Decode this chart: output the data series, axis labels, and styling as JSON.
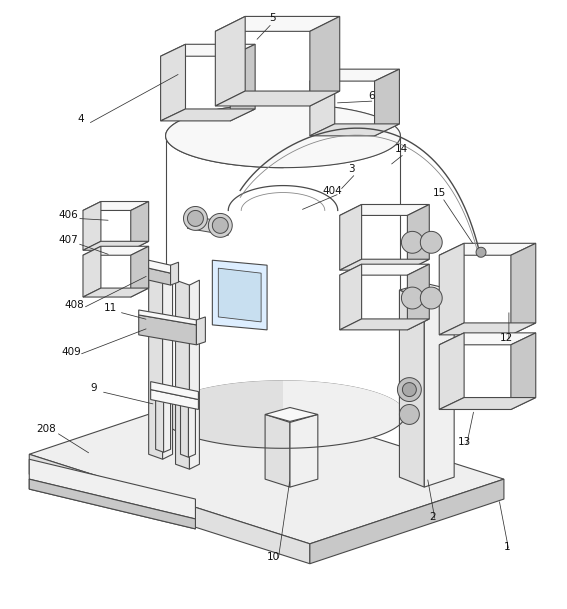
{
  "bg": "#ffffff",
  "lc": "#4a4a4a",
  "lc_light": "#888888",
  "fc_light": "#f0f0f0",
  "fc_mid": "#e0e0e0",
  "fc_dark": "#c8c8c8",
  "fc_top": "#f8f8f8",
  "figw": 5.67,
  "figh": 6.09,
  "dpi": 100
}
